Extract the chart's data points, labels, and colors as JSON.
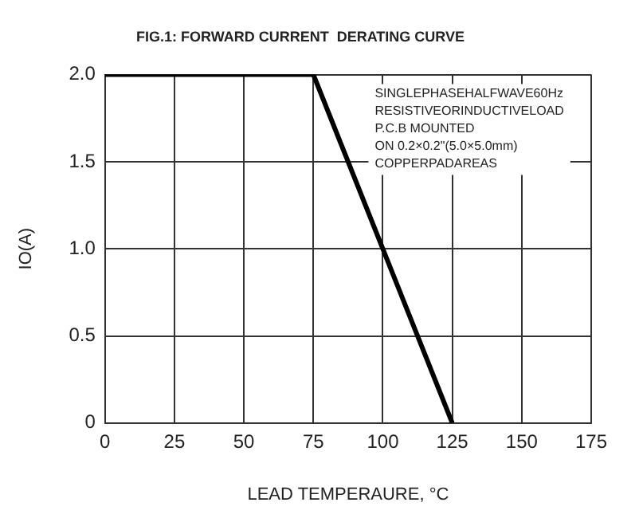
{
  "chart_data": {
    "type": "line",
    "title": "FIG.1: FORWARD CURRENT  DERATING CURVE",
    "xlabel": "LEAD TEMPERAURE, °C",
    "ylabel": "IO(A)",
    "x": [
      0,
      75,
      125
    ],
    "series": [
      {
        "color": "#000000",
        "values": [
          2,
          2,
          0
        ]
      }
    ],
    "xlim": [
      0,
      175
    ],
    "xticks": [
      0,
      25,
      50,
      75,
      100,
      125,
      150,
      175
    ],
    "ylim": [
      0,
      2
    ],
    "yticks": [
      {
        "value": 0,
        "label": "0"
      },
      {
        "value": 0.5,
        "label": "0.5"
      },
      {
        "value": 1,
        "label": "1.0"
      },
      {
        "value": 1.5,
        "label": "1.5"
      },
      {
        "value": 2,
        "label": "2.0"
      }
    ],
    "grid": true,
    "legend": false,
    "marker": "none",
    "line_style": "solid",
    "annotations": [
      "SINGLEPHASEHALFWAVE60Hz",
      "RESISTIVEORINDUCTIVELOAD",
      "P.C.B MOUNTED",
      "ON 0.2×0.2\"(5.0×5.0mm)",
      "COPPERPADAREAS"
    ]
  }
}
